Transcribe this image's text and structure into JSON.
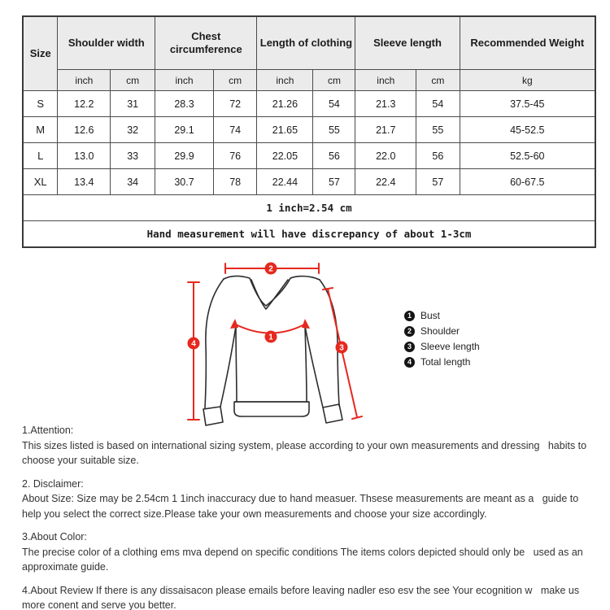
{
  "table": {
    "columns": {
      "size": "Size",
      "shoulder": "Shoulder width",
      "chest": "Chest circumference",
      "length": "Length of clothing",
      "sleeve": "Sleeve length",
      "weight": "Recommended Weight"
    },
    "units": [
      "inch",
      "cm",
      "inch",
      "cm",
      "inch",
      "cm",
      "inch",
      "cm",
      "kg"
    ],
    "rows": [
      [
        "S",
        "12.2",
        "31",
        "28.3",
        "72",
        "21.26",
        "54",
        "21.3",
        "54",
        "37.5-45"
      ],
      [
        "M",
        "12.6",
        "32",
        "29.1",
        "74",
        "21.65",
        "55",
        "21.7",
        "55",
        "45-52.5"
      ],
      [
        "L",
        "13.0",
        "33",
        "29.9",
        "76",
        "22.05",
        "56",
        "22.0",
        "56",
        "52.5-60"
      ],
      [
        "XL",
        "13.4",
        "34",
        "30.7",
        "78",
        "22.44",
        "57",
        "22.4",
        "57",
        "60-67.5"
      ]
    ],
    "notes": [
      "1 inch=2.54 cm",
      "Hand measurement will have discrepancy of about 1-3cm"
    ]
  },
  "diagram": {
    "markers": {
      "bust": "1",
      "shoulder": "2",
      "sleeve": "3",
      "total": "4"
    },
    "legend": [
      {
        "num": "1",
        "label": "Bust"
      },
      {
        "num": "2",
        "label": "Shoulder"
      },
      {
        "num": "3",
        "label": "Sleeve length"
      },
      {
        "num": "4",
        "label": "Total length"
      }
    ],
    "line_color": "#e6281e",
    "outline_color": "#2d2d2d"
  },
  "sections": [
    {
      "heading": "1.Attention:",
      "body": "This sizes listed is based on international sizing system, please according to your own measurements and dressing   habits to choose your suitable size."
    },
    {
      "heading": "2. Disclaimer:",
      "body": "About Size: Size may be 2.54cm 1 1inch inaccuracy due to hand measuer. Thsese measurements are meant as a   guide to help you select the correct size.Please take your own measurements and choose your size accordingly."
    },
    {
      "heading": "3.About Color:",
      "body": "The precise color of a clothing ems mva depend on specific conditions The items colors depicted should only be   used as an approximate guide."
    },
    {
      "heading": "",
      "body": "4.About Review If there is any dissaisacon please emails before leaving nadler eso esv the see Your ecognition w   make us more conent and serve you better."
    }
  ]
}
